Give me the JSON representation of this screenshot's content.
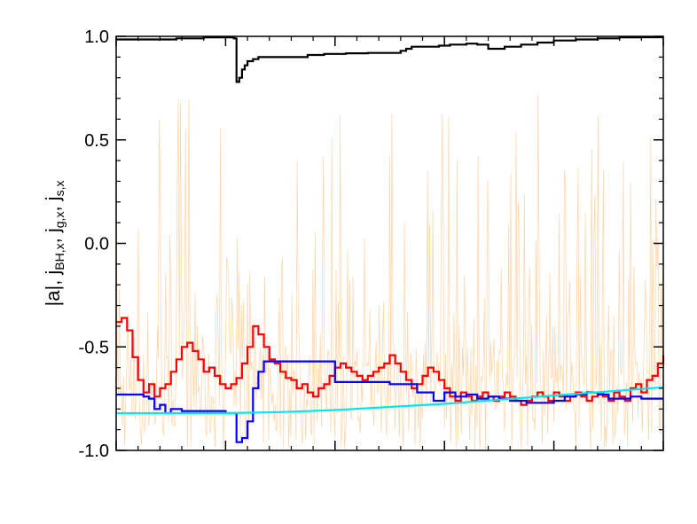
{
  "chart_data": {
    "type": "line",
    "title": "",
    "xlabel": "",
    "ylabel": {
      "parts": [
        {
          "text": "|a|, j",
          "sub": false
        },
        {
          "text": "BH,x",
          "sub": true
        },
        {
          "text": ", j",
          "sub": false
        },
        {
          "text": "g,x",
          "sub": true
        },
        {
          "text": ", j",
          "sub": false
        },
        {
          "text": "s,x",
          "sub": true
        }
      ]
    },
    "ylim": [
      -1.0,
      1.0
    ],
    "xlim": [
      0,
      100
    ],
    "yticks": [
      -1.0,
      -0.5,
      0.0,
      0.5,
      1.0
    ],
    "ytick_labels": [
      "-1.0",
      "-0.5",
      "0.0",
      "0.5",
      "1.0"
    ],
    "xtick_labels_visible": false,
    "grid": false,
    "series": [
      {
        "color": "#000000",
        "style": "step",
        "x": [
          0,
          6,
          11,
          16,
          21.5,
          22.0,
          22.5,
          23,
          23.5,
          24,
          25,
          26,
          28,
          31,
          35,
          38,
          42,
          46,
          50,
          52,
          53,
          54,
          55,
          59,
          61,
          64,
          66,
          68,
          71,
          74,
          77,
          80,
          84,
          88,
          92,
          96,
          100
        ],
        "values": [
          0.985,
          0.985,
          0.99,
          0.995,
          0.99,
          0.78,
          0.8,
          0.84,
          0.86,
          0.88,
          0.89,
          0.9,
          0.9,
          0.9,
          0.91,
          0.915,
          0.918,
          0.92,
          0.92,
          0.93,
          0.94,
          0.95,
          0.95,
          0.955,
          0.96,
          0.965,
          0.96,
          0.94,
          0.95,
          0.96,
          0.97,
          0.98,
          0.985,
          0.99,
          0.995,
          0.997,
          1.0
        ]
      },
      {
        "color": "#ff0000",
        "style": "step",
        "x": [
          0,
          1,
          2,
          3,
          4,
          5,
          6,
          7,
          8,
          9,
          10,
          11,
          12,
          13,
          14,
          15,
          16,
          17,
          18,
          19,
          20,
          21,
          22,
          23,
          24,
          25,
          26,
          27,
          28,
          29,
          30,
          31,
          32,
          33,
          34,
          35,
          36,
          37,
          38,
          39,
          40,
          41,
          42,
          43,
          44,
          45,
          46,
          47,
          48,
          49,
          50,
          51,
          52,
          53,
          54,
          55,
          56,
          57,
          58,
          59,
          60,
          61,
          62,
          63,
          64,
          65,
          66,
          67,
          68,
          69,
          70,
          71,
          72,
          73,
          74,
          75,
          76,
          77,
          78,
          79,
          80,
          81,
          82,
          83,
          84,
          85,
          86,
          87,
          88,
          89,
          90,
          91,
          92,
          93,
          94,
          95,
          96,
          97,
          98,
          99,
          100
        ],
        "values": [
          -0.38,
          -0.36,
          -0.42,
          -0.55,
          -0.66,
          -0.72,
          -0.68,
          -0.74,
          -0.7,
          -0.68,
          -0.62,
          -0.56,
          -0.5,
          -0.48,
          -0.52,
          -0.56,
          -0.62,
          -0.6,
          -0.64,
          -0.68,
          -0.7,
          -0.68,
          -0.65,
          -0.58,
          -0.5,
          -0.4,
          -0.44,
          -0.5,
          -0.56,
          -0.58,
          -0.62,
          -0.65,
          -0.66,
          -0.7,
          -0.68,
          -0.72,
          -0.74,
          -0.7,
          -0.68,
          -0.64,
          -0.6,
          -0.58,
          -0.6,
          -0.62,
          -0.64,
          -0.66,
          -0.64,
          -0.62,
          -0.6,
          -0.58,
          -0.54,
          -0.58,
          -0.62,
          -0.66,
          -0.7,
          -0.68,
          -0.64,
          -0.6,
          -0.62,
          -0.66,
          -0.7,
          -0.74,
          -0.76,
          -0.72,
          -0.74,
          -0.76,
          -0.74,
          -0.72,
          -0.74,
          -0.76,
          -0.74,
          -0.72,
          -0.74,
          -0.76,
          -0.78,
          -0.76,
          -0.74,
          -0.72,
          -0.74,
          -0.76,
          -0.72,
          -0.74,
          -0.76,
          -0.74,
          -0.72,
          -0.74,
          -0.76,
          -0.74,
          -0.72,
          -0.74,
          -0.76,
          -0.72,
          -0.74,
          -0.76,
          -0.7,
          -0.68,
          -0.72,
          -0.66,
          -0.64,
          -0.58,
          -0.54
        ]
      },
      {
        "color": "#0000ff",
        "style": "step",
        "x": [
          0,
          3,
          5,
          6,
          7,
          8,
          9,
          10,
          12,
          16,
          20,
          21,
          22,
          23,
          24,
          25,
          26,
          27,
          30,
          35,
          40,
          45,
          50,
          55,
          58,
          60,
          62,
          64,
          66,
          68,
          70,
          72,
          75,
          78,
          80,
          82,
          84,
          86,
          88,
          90,
          92,
          94,
          96,
          98,
          100
        ],
        "values": [
          -0.73,
          -0.73,
          -0.74,
          -0.75,
          -0.8,
          -0.78,
          -0.82,
          -0.8,
          -0.81,
          -0.81,
          -0.82,
          -0.82,
          -0.96,
          -0.94,
          -0.86,
          -0.7,
          -0.62,
          -0.57,
          -0.57,
          -0.57,
          -0.67,
          -0.67,
          -0.68,
          -0.72,
          -0.76,
          -0.72,
          -0.74,
          -0.73,
          -0.75,
          -0.74,
          -0.75,
          -0.76,
          -0.77,
          -0.77,
          -0.76,
          -0.74,
          -0.73,
          -0.72,
          -0.73,
          -0.75,
          -0.75,
          -0.74,
          -0.75,
          -0.75,
          -0.75
        ]
      },
      {
        "color": "#00e5ee",
        "style": "line",
        "x": [
          0,
          10,
          20,
          30,
          40,
          50,
          60,
          70,
          80,
          90,
          100
        ],
        "values": [
          -0.82,
          -0.82,
          -0.82,
          -0.815,
          -0.805,
          -0.79,
          -0.775,
          -0.755,
          -0.735,
          -0.715,
          -0.695
        ]
      }
    ],
    "background_series": {
      "color": "#ffc58a",
      "style": "noisy thin line, rapid oscillation between about -1.0 and 0.78"
    }
  }
}
